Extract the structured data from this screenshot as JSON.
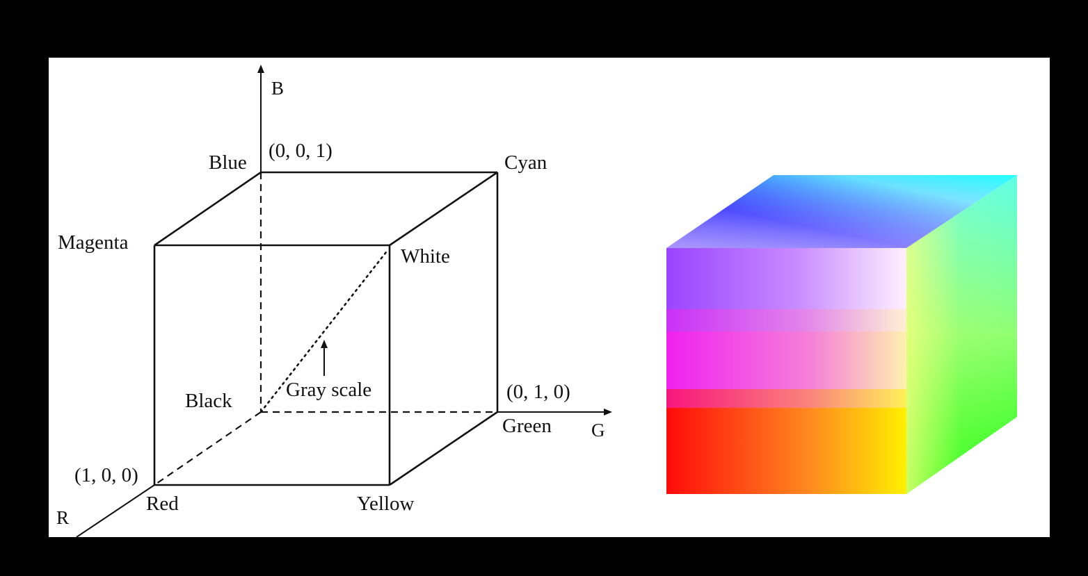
{
  "diagram": {
    "axes": {
      "r_label": "R",
      "g_label": "G",
      "b_label": "B"
    },
    "coordinates": {
      "blue_corner": "(0, 0, 1)",
      "green_corner": "(0, 1, 0)",
      "red_corner": "(1, 0, 0)"
    },
    "vertices": {
      "blue": "Blue",
      "cyan": "Cyan",
      "magenta": "Magenta",
      "white": "White",
      "black": "Black",
      "green": "Green",
      "red": "Red",
      "yellow": "Yellow"
    },
    "gray_scale_label": "Gray scale"
  },
  "colors": {
    "background": "#000000",
    "panel": "#ffffff",
    "line": "#111111",
    "cube_red": "#ff0000",
    "cube_green": "#00ff00",
    "cube_blue": "#0000ff",
    "cube_white": "#ffffff",
    "cube_magenta": "#ff00ff",
    "cube_yellow": "#ffff00",
    "cube_cyan": "#00ffff"
  }
}
